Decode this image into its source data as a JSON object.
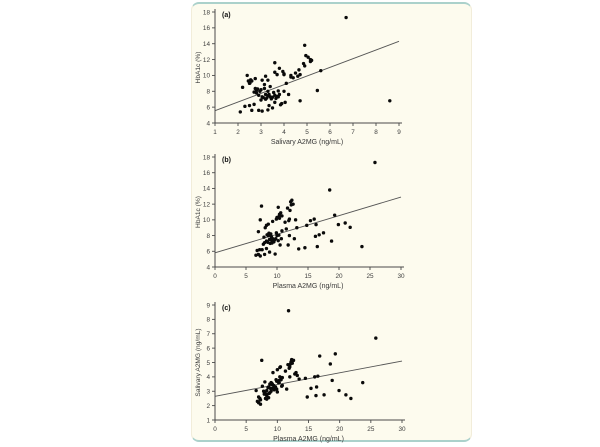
{
  "figure": {
    "background_color": "#fdfbee",
    "edge_rule_color": "#abd1cb",
    "point_color": "#0a0a0a",
    "axis_color": "#4a4a4a",
    "trendline_color": "#555555",
    "tick_label_color": "#3d3d3d",
    "axis_label_color": "#383838"
  },
  "chart_data": [
    {
      "type": "scatter",
      "label": "(a)",
      "xlabel": "Salivary A2MG (ng/mL)",
      "ylabel": "HbA1c (%)",
      "xlim": [
        1,
        9
      ],
      "ylim": [
        4,
        18
      ],
      "x_ticks": [
        1,
        2,
        3,
        4,
        5,
        6,
        7,
        8,
        9
      ],
      "y_ticks": [
        4,
        6,
        8,
        10,
        12,
        14,
        16,
        18
      ],
      "grid": false,
      "legend": "none",
      "trendline": {
        "x1": 1,
        "y1": 5.55,
        "x2": 9,
        "y2": 14.3
      },
      "points": [
        [
          2.1,
          5.4
        ],
        [
          3.05,
          5.5
        ],
        [
          2.6,
          5.6
        ],
        [
          2.9,
          5.6
        ],
        [
          3.3,
          5.65
        ],
        [
          3.5,
          5.9
        ],
        [
          2.3,
          6.1
        ],
        [
          2.5,
          6.2
        ],
        [
          3.35,
          6.2
        ],
        [
          2.7,
          6.35
        ],
        [
          3.85,
          6.3
        ],
        [
          3.9,
          6.45
        ],
        [
          4.05,
          6.6
        ],
        [
          3.6,
          6.6
        ],
        [
          8.6,
          6.8
        ],
        [
          4.7,
          6.8
        ],
        [
          3.0,
          6.9
        ],
        [
          3.2,
          7.0
        ],
        [
          3.45,
          7.05
        ],
        [
          3.65,
          7.1
        ],
        [
          3.1,
          7.2
        ],
        [
          3.25,
          7.15
        ],
        [
          3.5,
          7.25
        ],
        [
          3.05,
          7.3
        ],
        [
          3.4,
          7.3
        ],
        [
          3.7,
          7.35
        ],
        [
          3.3,
          7.45
        ],
        [
          2.9,
          7.5
        ],
        [
          3.6,
          7.5
        ],
        [
          3.35,
          7.6
        ],
        [
          3.2,
          7.6
        ],
        [
          3.8,
          7.6
        ],
        [
          2.8,
          7.8
        ],
        [
          3.55,
          7.85
        ],
        [
          2.95,
          8.0
        ],
        [
          3.3,
          8.0
        ],
        [
          3.75,
          8.05
        ],
        [
          2.8,
          8.1
        ],
        [
          3.0,
          8.2
        ],
        [
          3.15,
          8.35
        ],
        [
          2.85,
          8.3
        ],
        [
          3.4,
          8.6
        ],
        [
          3.15,
          8.85
        ],
        [
          2.2,
          8.5
        ],
        [
          4.0,
          8.0
        ],
        [
          4.2,
          7.6
        ],
        [
          4.1,
          9.0
        ],
        [
          3.75,
          7.3
        ],
        [
          5.45,
          8.1
        ],
        [
          2.5,
          9.0
        ],
        [
          2.45,
          9.3
        ],
        [
          2.55,
          9.45
        ],
        [
          2.4,
          10.0
        ],
        [
          2.6,
          9.3
        ],
        [
          3.2,
          9.9
        ],
        [
          4.0,
          10.1
        ],
        [
          3.3,
          9.4
        ],
        [
          3.05,
          9.4
        ],
        [
          2.75,
          9.6
        ],
        [
          2.52,
          9.05
        ],
        [
          5.6,
          10.6
        ],
        [
          2.75,
          8.35
        ],
        [
          2.7,
          7.9
        ],
        [
          4.95,
          12.5
        ],
        [
          5.05,
          12.3
        ],
        [
          5.15,
          12.0
        ],
        [
          4.85,
          11.5
        ],
        [
          4.9,
          11.2
        ],
        [
          4.7,
          10.1
        ],
        [
          4.6,
          9.9
        ],
        [
          5.2,
          11.9
        ],
        [
          3.6,
          11.6
        ],
        [
          3.8,
          10.9
        ],
        [
          3.7,
          10.1
        ],
        [
          3.6,
          10.4
        ],
        [
          3.95,
          10.5
        ],
        [
          4.0,
          10.2
        ],
        [
          5.15,
          11.75
        ],
        [
          4.3,
          10.0
        ],
        [
          4.3,
          9.8
        ],
        [
          4.5,
          10.3
        ],
        [
          4.65,
          10.7
        ],
        [
          4.4,
          9.7
        ],
        [
          6.7,
          17.3
        ],
        [
          4.9,
          13.8
        ]
      ]
    },
    {
      "type": "scatter",
      "label": "(b)",
      "xlabel": "Plasma A2MG (ng/mL)",
      "ylabel": "HbA1c (%)",
      "xlim": [
        0,
        30
      ],
      "ylim": [
        4,
        18
      ],
      "x_ticks": [
        0,
        5,
        10,
        15,
        20,
        25,
        30
      ],
      "y_ticks": [
        4,
        6,
        8,
        10,
        12,
        14,
        16,
        18
      ],
      "grid": false,
      "legend": "none",
      "trendline": {
        "x1": 0,
        "y1": 5.8,
        "x2": 30,
        "y2": 12.9
      },
      "points": [
        [
          7.3,
          5.4
        ],
        [
          6.6,
          5.5
        ],
        [
          7.0,
          5.6
        ],
        [
          8.0,
          5.6
        ],
        [
          9.7,
          5.65
        ],
        [
          8.8,
          5.9
        ],
        [
          6.8,
          6.1
        ],
        [
          7.2,
          6.2
        ],
        [
          7.6,
          6.2
        ],
        [
          8.3,
          6.35
        ],
        [
          13.5,
          6.3
        ],
        [
          14.5,
          6.45
        ],
        [
          16.5,
          6.6
        ],
        [
          23.7,
          6.6
        ],
        [
          11.8,
          6.8
        ],
        [
          10.5,
          6.8
        ],
        [
          7.8,
          6.9
        ],
        [
          8.9,
          7.0
        ],
        [
          9.2,
          7.05
        ],
        [
          8.0,
          7.1
        ],
        [
          9.5,
          7.2
        ],
        [
          8.5,
          7.15
        ],
        [
          9.2,
          7.25
        ],
        [
          8.3,
          7.3
        ],
        [
          9.4,
          7.3
        ],
        [
          10.2,
          7.35
        ],
        [
          9.6,
          7.45
        ],
        [
          8.8,
          7.5
        ],
        [
          9.0,
          7.5
        ],
        [
          10.7,
          7.6
        ],
        [
          9.3,
          7.6
        ],
        [
          9.8,
          7.6
        ],
        [
          7.9,
          7.8
        ],
        [
          9.1,
          7.85
        ],
        [
          10.0,
          8.0
        ],
        [
          8.6,
          8.0
        ],
        [
          10.3,
          8.05
        ],
        [
          8.4,
          8.1
        ],
        [
          9.0,
          8.2
        ],
        [
          9.9,
          8.35
        ],
        [
          8.7,
          8.3
        ],
        [
          10.8,
          8.6
        ],
        [
          11.5,
          8.85
        ],
        [
          7.0,
          8.5
        ],
        [
          12.0,
          8.0
        ],
        [
          12.8,
          7.6
        ],
        [
          13.2,
          9.0
        ],
        [
          18.8,
          7.3
        ],
        [
          16.8,
          8.1
        ],
        [
          8.1,
          9.0
        ],
        [
          8.3,
          9.3
        ],
        [
          8.6,
          9.45
        ],
        [
          7.3,
          10.0
        ],
        [
          14.8,
          9.3
        ],
        [
          15.4,
          9.9
        ],
        [
          16.0,
          10.1
        ],
        [
          16.3,
          9.4
        ],
        [
          19.9,
          9.4
        ],
        [
          21.0,
          9.6
        ],
        [
          21.8,
          9.05
        ],
        [
          19.3,
          10.6
        ],
        [
          17.5,
          8.35
        ],
        [
          16.2,
          7.9
        ],
        [
          12.4,
          12.5
        ],
        [
          12.2,
          12.3
        ],
        [
          12.6,
          12.0
        ],
        [
          11.7,
          11.5
        ],
        [
          12.1,
          11.2
        ],
        [
          12.0,
          10.1
        ],
        [
          11.9,
          9.9
        ],
        [
          12.3,
          11.9
        ],
        [
          10.2,
          11.6
        ],
        [
          10.6,
          10.9
        ],
        [
          9.9,
          10.1
        ],
        [
          10.3,
          10.4
        ],
        [
          10.8,
          10.5
        ],
        [
          10.4,
          10.2
        ],
        [
          7.5,
          11.75
        ],
        [
          13.0,
          10.0
        ],
        [
          9.3,
          9.8
        ],
        [
          10.0,
          10.3
        ],
        [
          10.4,
          10.7
        ],
        [
          11.3,
          9.7
        ],
        [
          25.8,
          17.3
        ],
        [
          18.5,
          13.8
        ]
      ]
    },
    {
      "type": "scatter",
      "label": "(c)",
      "xlabel": "Plasma A2MG (ng/mL)",
      "ylabel": "Salivary A2MG (ng/mL)",
      "xlim": [
        0,
        30
      ],
      "ylim": [
        1,
        9
      ],
      "x_ticks": [
        0,
        5,
        10,
        15,
        20,
        25,
        30
      ],
      "y_ticks": [
        1,
        2,
        3,
        4,
        5,
        6,
        7,
        8,
        9
      ],
      "grid": false,
      "legend": "none",
      "trendline": {
        "x1": 0,
        "y1": 2.65,
        "x2": 30,
        "y2": 5.1
      },
      "points": [
        [
          7.3,
          2.1
        ],
        [
          6.6,
          3.05
        ],
        [
          7.0,
          2.6
        ],
        [
          8.0,
          2.9
        ],
        [
          9.7,
          3.3
        ],
        [
          8.8,
          3.5
        ],
        [
          6.8,
          2.3
        ],
        [
          7.2,
          2.5
        ],
        [
          7.6,
          3.35
        ],
        [
          8.3,
          2.7
        ],
        [
          13.5,
          3.85
        ],
        [
          14.5,
          3.9
        ],
        [
          16.5,
          4.05
        ],
        [
          23.7,
          3.6
        ],
        [
          11.8,
          8.6
        ],
        [
          10.5,
          4.7
        ],
        [
          7.8,
          3.0
        ],
        [
          8.9,
          3.2
        ],
        [
          9.2,
          3.45
        ],
        [
          8.0,
          3.65
        ],
        [
          9.5,
          3.1
        ],
        [
          8.5,
          3.25
        ],
        [
          9.2,
          3.5
        ],
        [
          8.3,
          3.05
        ],
        [
          9.4,
          3.4
        ],
        [
          10.2,
          3.7
        ],
        [
          9.6,
          3.3
        ],
        [
          8.8,
          2.9
        ],
        [
          9.0,
          3.6
        ],
        [
          10.7,
          3.35
        ],
        [
          9.3,
          3.2
        ],
        [
          9.8,
          3.8
        ],
        [
          7.9,
          2.8
        ],
        [
          9.1,
          3.55
        ],
        [
          10.0,
          2.95
        ],
        [
          8.6,
          3.3
        ],
        [
          10.3,
          3.75
        ],
        [
          8.4,
          2.8
        ],
        [
          9.0,
          3.0
        ],
        [
          9.9,
          3.15
        ],
        [
          8.7,
          2.85
        ],
        [
          10.8,
          3.4
        ],
        [
          11.5,
          3.15
        ],
        [
          7.0,
          2.2
        ],
        [
          12.0,
          4.0
        ],
        [
          12.8,
          4.2
        ],
        [
          13.2,
          4.1
        ],
        [
          18.8,
          3.75
        ],
        [
          16.8,
          5.45
        ],
        [
          8.1,
          2.5
        ],
        [
          8.3,
          2.45
        ],
        [
          8.6,
          2.55
        ],
        [
          7.3,
          2.4
        ],
        [
          14.8,
          2.6
        ],
        [
          15.4,
          3.2
        ],
        [
          16.0,
          4.0
        ],
        [
          16.3,
          3.3
        ],
        [
          19.9,
          3.05
        ],
        [
          21.0,
          2.75
        ],
        [
          21.8,
          2.5
        ],
        [
          19.3,
          5.6
        ],
        [
          17.5,
          2.75
        ],
        [
          16.2,
          2.7
        ],
        [
          12.4,
          4.95
        ],
        [
          12.2,
          5.05
        ],
        [
          12.6,
          5.15
        ],
        [
          11.7,
          4.85
        ],
        [
          12.1,
          4.9
        ],
        [
          12.0,
          4.7
        ],
        [
          11.9,
          4.6
        ],
        [
          12.3,
          5.2
        ],
        [
          10.2,
          3.6
        ],
        [
          10.6,
          3.8
        ],
        [
          9.9,
          3.7
        ],
        [
          10.3,
          3.6
        ],
        [
          10.8,
          3.95
        ],
        [
          10.4,
          4.0
        ],
        [
          7.5,
          5.15
        ],
        [
          13.0,
          4.3
        ],
        [
          9.3,
          4.3
        ],
        [
          10.0,
          4.5
        ],
        [
          10.4,
          4.65
        ],
        [
          11.3,
          4.4
        ],
        [
          25.8,
          6.7
        ],
        [
          18.5,
          4.9
        ]
      ]
    }
  ]
}
